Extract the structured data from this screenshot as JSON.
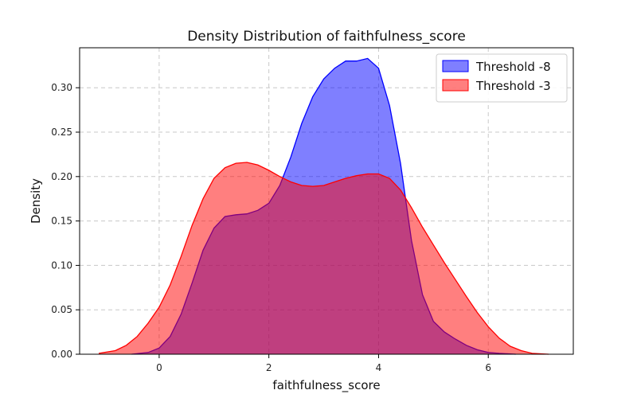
{
  "chart_data": {
    "type": "area",
    "title": "Density Distribution of faithfulness_score",
    "xlabel": "faithfulness_score",
    "ylabel": "Density",
    "xlim": [
      -1.45,
      7.55
    ],
    "ylim": [
      0,
      0.345
    ],
    "xticks": [
      0,
      2,
      4,
      6
    ],
    "yticks": [
      0.0,
      0.05,
      0.1,
      0.15,
      0.2,
      0.25,
      0.3
    ],
    "grid": true,
    "legend_position": "top-right",
    "series": [
      {
        "name": "Threshold -8",
        "color": "#0000ff",
        "fill": "#7f7fff",
        "x": [
          -0.5,
          -0.2,
          0.0,
          0.2,
          0.4,
          0.6,
          0.8,
          1.0,
          1.2,
          1.4,
          1.6,
          1.8,
          2.0,
          2.2,
          2.4,
          2.6,
          2.8,
          3.0,
          3.2,
          3.4,
          3.6,
          3.8,
          4.0,
          4.2,
          4.4,
          4.6,
          4.8,
          5.0,
          5.2,
          5.4,
          5.6,
          5.8,
          6.0,
          6.2,
          6.5
        ],
        "y": [
          0.0,
          0.002,
          0.007,
          0.02,
          0.045,
          0.08,
          0.117,
          0.142,
          0.155,
          0.157,
          0.158,
          0.162,
          0.17,
          0.19,
          0.222,
          0.26,
          0.29,
          0.31,
          0.322,
          0.33,
          0.33,
          0.333,
          0.322,
          0.28,
          0.215,
          0.128,
          0.067,
          0.037,
          0.025,
          0.017,
          0.01,
          0.005,
          0.002,
          0.001,
          0.0
        ]
      },
      {
        "name": "Threshold -3",
        "color": "#ff0000",
        "fill": "#ff7f7f",
        "x": [
          -1.1,
          -0.8,
          -0.6,
          -0.4,
          -0.2,
          0.0,
          0.2,
          0.4,
          0.6,
          0.8,
          1.0,
          1.2,
          1.4,
          1.6,
          1.8,
          2.0,
          2.2,
          2.4,
          2.6,
          2.8,
          3.0,
          3.2,
          3.4,
          3.6,
          3.8,
          4.0,
          4.2,
          4.4,
          4.6,
          4.8,
          5.0,
          5.2,
          5.4,
          5.6,
          5.8,
          6.0,
          6.2,
          6.4,
          6.6,
          6.8,
          7.1
        ],
        "y": [
          0.001,
          0.004,
          0.01,
          0.02,
          0.035,
          0.053,
          0.078,
          0.11,
          0.145,
          0.175,
          0.198,
          0.21,
          0.215,
          0.216,
          0.213,
          0.207,
          0.2,
          0.194,
          0.19,
          0.189,
          0.19,
          0.194,
          0.198,
          0.201,
          0.203,
          0.203,
          0.198,
          0.185,
          0.165,
          0.143,
          0.123,
          0.103,
          0.084,
          0.065,
          0.047,
          0.031,
          0.018,
          0.009,
          0.004,
          0.001,
          0.0
        ]
      }
    ]
  }
}
